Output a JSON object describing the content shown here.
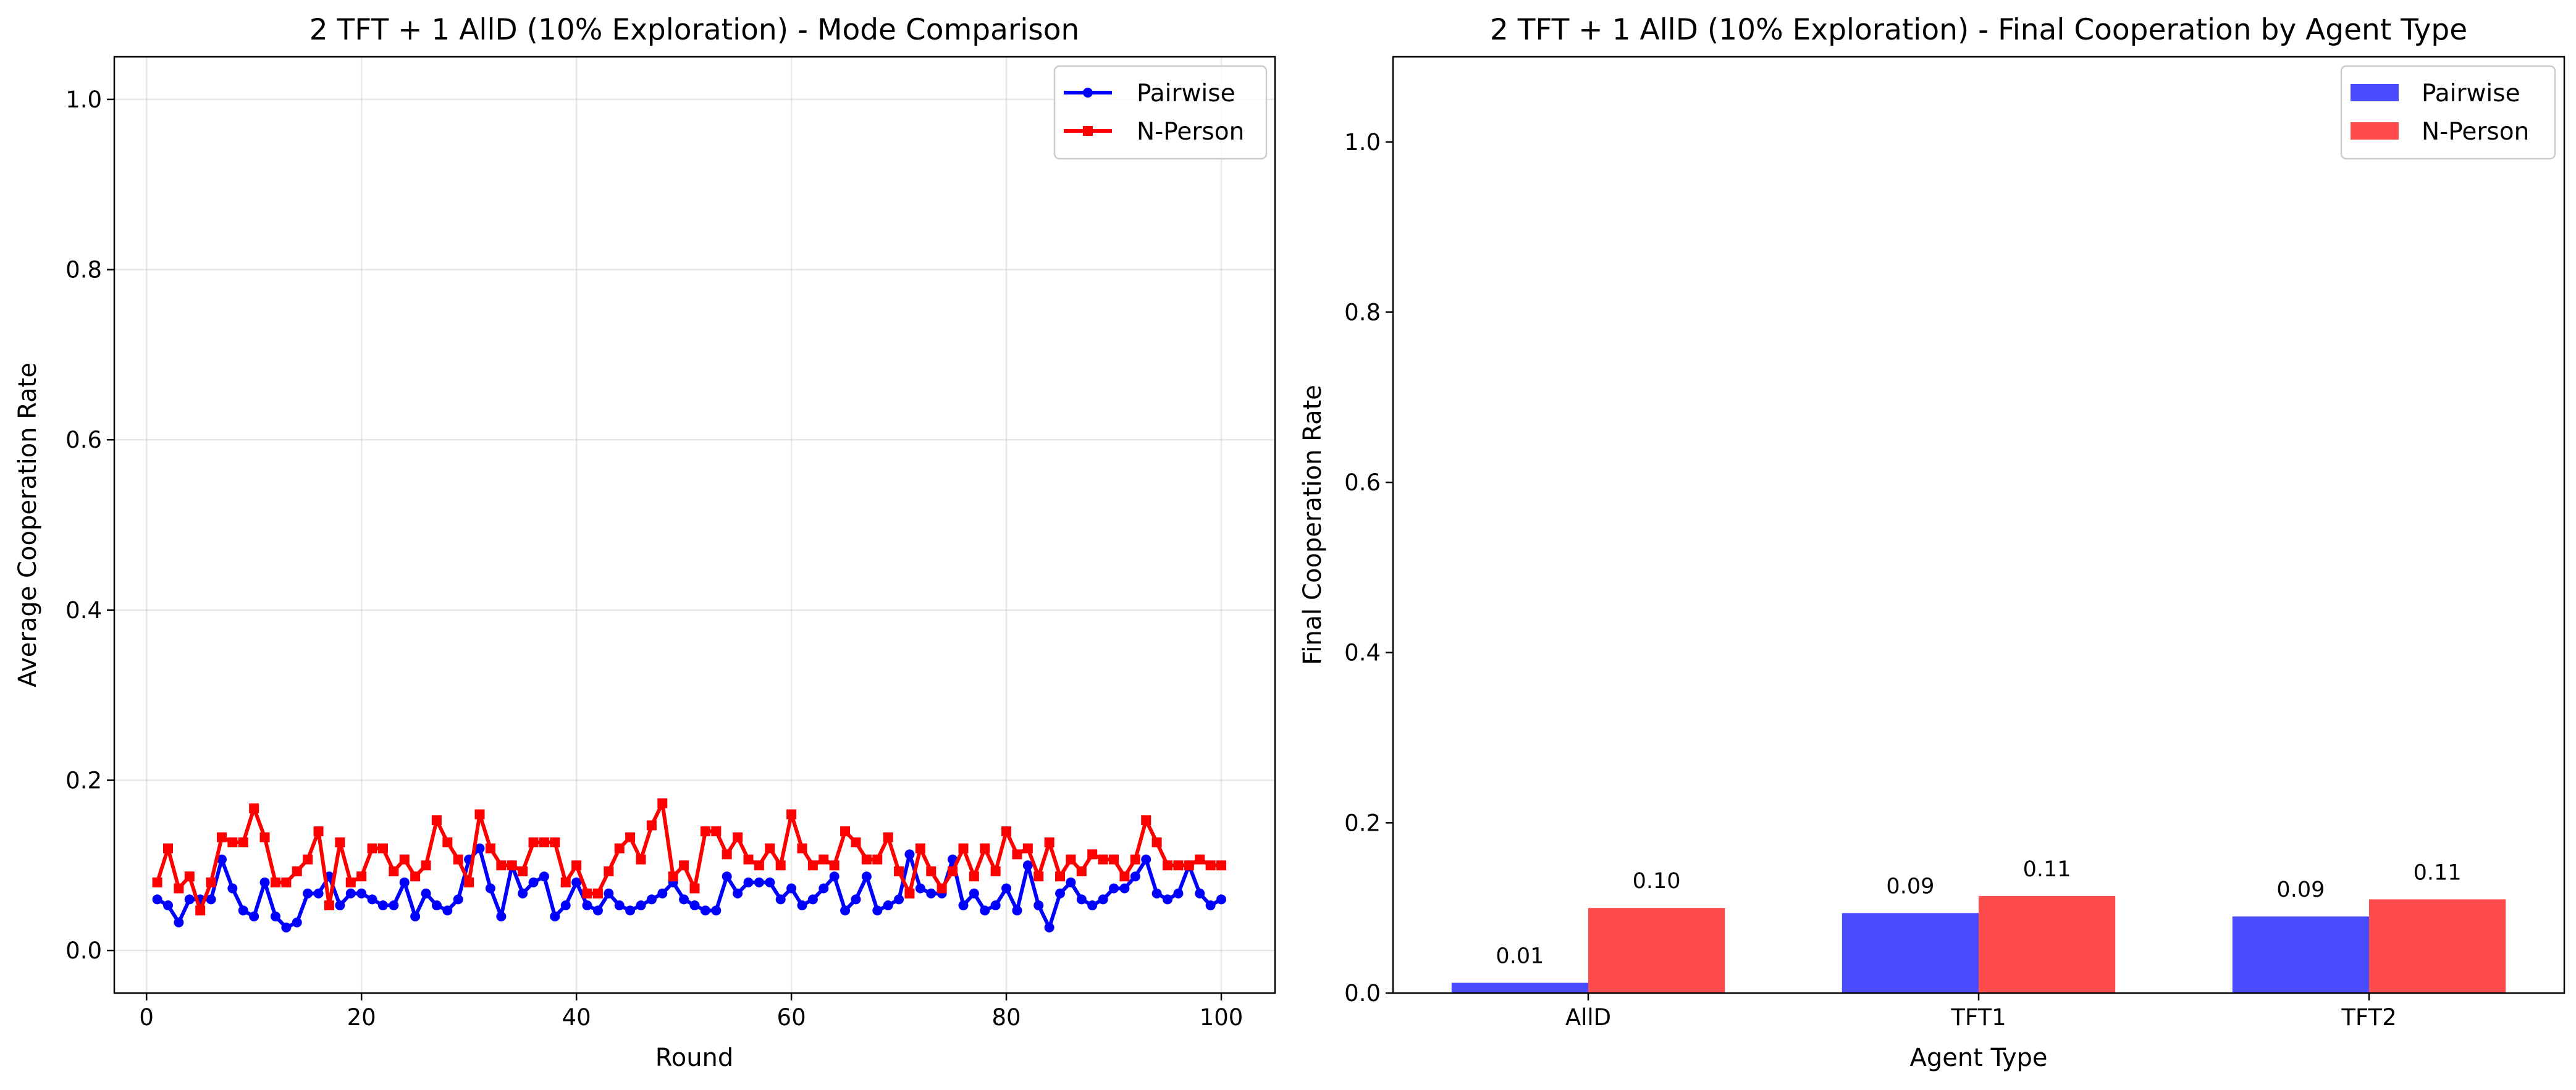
{
  "chart_data": [
    {
      "type": "line",
      "title": "2 TFT + 1 AllD (10% Exploration) - Mode Comparison",
      "xlabel": "Round",
      "ylabel": "Average Cooperation Rate",
      "xlim": [
        -3,
        105
      ],
      "ylim": [
        -0.05,
        1.05
      ],
      "xticks": [
        0,
        20,
        40,
        60,
        80,
        100
      ],
      "yticks": [
        0.0,
        0.2,
        0.4,
        0.6,
        0.8,
        1.0
      ],
      "xtick_labels": [
        "0",
        "20",
        "40",
        "60",
        "80",
        "100"
      ],
      "ytick_labels": [
        "0.0",
        "0.2",
        "0.4",
        "0.6",
        "0.8",
        "1.0"
      ],
      "grid": true,
      "legend_position": "top-right",
      "x": [
        1,
        2,
        3,
        4,
        5,
        6,
        7,
        8,
        9,
        10,
        11,
        12,
        13,
        14,
        15,
        16,
        17,
        18,
        19,
        20,
        21,
        22,
        23,
        24,
        25,
        26,
        27,
        28,
        29,
        30,
        31,
        32,
        33,
        34,
        35,
        36,
        37,
        38,
        39,
        40,
        41,
        42,
        43,
        44,
        45,
        46,
        47,
        48,
        49,
        50,
        51,
        52,
        53,
        54,
        55,
        56,
        57,
        58,
        59,
        60,
        61,
        62,
        63,
        64,
        65,
        66,
        67,
        68,
        69,
        70,
        71,
        72,
        73,
        74,
        75,
        76,
        77,
        78,
        79,
        80,
        81,
        82,
        83,
        84,
        85,
        86,
        87,
        88,
        89,
        90,
        91,
        92,
        93,
        94,
        95,
        96,
        97,
        98,
        99,
        100
      ],
      "series": [
        {
          "name": "Pairwise",
          "color": "#0000ff",
          "marker": "circle",
          "values": [
            0.06,
            0.053,
            0.033,
            0.06,
            0.06,
            0.06,
            0.107,
            0.073,
            0.047,
            0.04,
            0.08,
            0.04,
            0.027,
            0.033,
            0.067,
            0.067,
            0.087,
            0.053,
            0.067,
            0.067,
            0.06,
            0.053,
            0.053,
            0.08,
            0.04,
            0.067,
            0.053,
            0.047,
            0.06,
            0.107,
            0.12,
            0.073,
            0.04,
            0.1,
            0.067,
            0.08,
            0.087,
            0.04,
            0.053,
            0.08,
            0.053,
            0.047,
            0.067,
            0.053,
            0.047,
            0.053,
            0.06,
            0.067,
            0.08,
            0.06,
            0.053,
            0.047,
            0.047,
            0.087,
            0.067,
            0.08,
            0.08,
            0.08,
            0.06,
            0.073,
            0.053,
            0.06,
            0.073,
            0.087,
            0.047,
            0.06,
            0.087,
            0.047,
            0.053,
            0.06,
            0.113,
            0.073,
            0.067,
            0.067,
            0.107,
            0.053,
            0.067,
            0.047,
            0.053,
            0.073,
            0.047,
            0.1,
            0.053,
            0.027,
            0.067,
            0.08,
            0.06,
            0.053,
            0.06,
            0.073,
            0.073,
            0.087,
            0.107,
            0.067,
            0.06,
            0.067,
            0.1,
            0.067,
            0.053,
            0.06
          ]
        },
        {
          "name": "N-Person",
          "color": "#ff0000",
          "marker": "square",
          "values": [
            0.08,
            0.12,
            0.073,
            0.087,
            0.047,
            0.08,
            0.133,
            0.127,
            0.127,
            0.167,
            0.133,
            0.08,
            0.08,
            0.093,
            0.107,
            0.14,
            0.053,
            0.127,
            0.08,
            0.087,
            0.12,
            0.12,
            0.093,
            0.107,
            0.087,
            0.1,
            0.153,
            0.127,
            0.107,
            0.08,
            0.16,
            0.12,
            0.1,
            0.1,
            0.093,
            0.127,
            0.127,
            0.127,
            0.08,
            0.1,
            0.067,
            0.067,
            0.093,
            0.12,
            0.133,
            0.107,
            0.147,
            0.173,
            0.087,
            0.1,
            0.073,
            0.14,
            0.14,
            0.113,
            0.133,
            0.107,
            0.1,
            0.12,
            0.1,
            0.16,
            0.12,
            0.1,
            0.107,
            0.1,
            0.14,
            0.127,
            0.107,
            0.107,
            0.133,
            0.093,
            0.067,
            0.12,
            0.093,
            0.073,
            0.093,
            0.12,
            0.087,
            0.12,
            0.093,
            0.14,
            0.113,
            0.12,
            0.087,
            0.127,
            0.087,
            0.107,
            0.093,
            0.113,
            0.107,
            0.107,
            0.087,
            0.107,
            0.153,
            0.127,
            0.1,
            0.1,
            0.1,
            0.107,
            0.1,
            0.1
          ]
        }
      ]
    },
    {
      "type": "bar",
      "title": "2 TFT + 1 AllD (10% Exploration) - Final Cooperation by Agent Type",
      "xlabel": "Agent Type",
      "ylabel": "Final Cooperation Rate",
      "ylim": [
        0.0,
        1.1
      ],
      "yticks": [
        0.0,
        0.2,
        0.4,
        0.6,
        0.8,
        1.0
      ],
      "ytick_labels": [
        "0.0",
        "0.2",
        "0.4",
        "0.6",
        "0.8",
        "1.0"
      ],
      "grid": false,
      "legend_position": "top-right",
      "categories": [
        "AllD",
        "TFT1",
        "TFT2"
      ],
      "series": [
        {
          "name": "Pairwise",
          "color": "#4b4bff",
          "values": [
            0.012,
            0.094,
            0.09
          ],
          "labels": [
            "0.01",
            "0.09",
            "0.09"
          ]
        },
        {
          "name": "N-Person",
          "color": "#ff4b4b",
          "values": [
            0.1,
            0.114,
            0.11
          ],
          "labels": [
            "0.10",
            "0.11",
            "0.11"
          ]
        }
      ]
    }
  ]
}
